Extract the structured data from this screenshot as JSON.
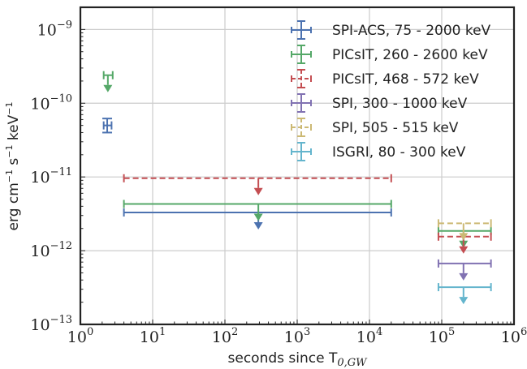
{
  "chart_data": {
    "type": "scatter",
    "xscale": "log",
    "yscale": "log",
    "xlim": [
      1,
      1000000
    ],
    "ylim": [
      1e-13,
      2e-09
    ],
    "xlabel": "seconds since T0,GW",
    "xlabel_main": "seconds since T",
    "xlabel_sub": "0,GW",
    "ylabel": "erg cm-1 s-1 keV-1",
    "ylabel_parts": {
      "a": "erg cm",
      "a_sup": "−1",
      "b": " s",
      "b_sup": "−1",
      "c": " keV",
      "c_sup": "−1"
    },
    "grid": true,
    "legend_position": "top-right",
    "x_ticks": [
      {
        "value": 1,
        "label": "10",
        "exp": "0"
      },
      {
        "value": 10,
        "label": "10",
        "exp": "1"
      },
      {
        "value": 100,
        "label": "10",
        "exp": "2"
      },
      {
        "value": 1000,
        "label": "10",
        "exp": "3"
      },
      {
        "value": 10000,
        "label": "10",
        "exp": "4"
      },
      {
        "value": 100000,
        "label": "10",
        "exp": "5"
      },
      {
        "value": 1000000,
        "label": "10",
        "exp": "6"
      }
    ],
    "y_ticks": [
      {
        "value": 1e-13,
        "label": "10",
        "exp": "−13"
      },
      {
        "value": 1e-12,
        "label": "10",
        "exp": "−12"
      },
      {
        "value": 1e-11,
        "label": "10",
        "exp": "−11"
      },
      {
        "value": 1e-10,
        "label": "10",
        "exp": "−10"
      },
      {
        "value": 1e-09,
        "label": "10",
        "exp": "−9"
      }
    ],
    "series": [
      {
        "name": "SPI-ACS, 75 - 2000 keV",
        "color": "#4c72b0",
        "dashed": false,
        "points": [
          {
            "x": 2.35,
            "y": 5e-11,
            "xlo": 2.1,
            "xhi": 2.7,
            "ylo": 4e-11,
            "yhi": 6.2e-11,
            "upper_limit": false
          },
          {
            "x": 290,
            "y": 3.3e-12,
            "xlo": 4,
            "xhi": 20000,
            "upper_limit": true
          }
        ]
      },
      {
        "name": "PICsIT, 260 - 2600 keV",
        "color": "#55a868",
        "dashed": false,
        "points": [
          {
            "x": 2.4,
            "y": 2.4e-10,
            "xlo": 2.1,
            "xhi": 2.8,
            "upper_limit": true
          },
          {
            "x": 290,
            "y": 4.3e-12,
            "xlo": 4,
            "xhi": 20000,
            "upper_limit": true
          },
          {
            "x": 200000,
            "y": 1.85e-12,
            "xlo": 90000,
            "xhi": 480000,
            "upper_limit": true
          }
        ]
      },
      {
        "name": "PICsIT, 468 - 572 keV",
        "color": "#c44e52",
        "dashed": true,
        "points": [
          {
            "x": 290,
            "y": 9.6e-12,
            "xlo": 4,
            "xhi": 20000,
            "upper_limit": true
          },
          {
            "x": 200000,
            "y": 1.55e-12,
            "xlo": 90000,
            "xhi": 480000,
            "upper_limit": true
          }
        ]
      },
      {
        "name": "SPI, 300 - 1000 keV",
        "color": "#8172b2",
        "dashed": false,
        "points": [
          {
            "x": 200000,
            "y": 6.7e-13,
            "xlo": 90000,
            "xhi": 480000,
            "upper_limit": true
          }
        ]
      },
      {
        "name": "SPI, 505 - 515 keV",
        "color": "#ccb974",
        "dashed": true,
        "points": [
          {
            "x": 200000,
            "y": 2.35e-12,
            "xlo": 90000,
            "xhi": 480000,
            "upper_limit": true
          }
        ]
      },
      {
        "name": "ISGRI, 80 - 300 keV",
        "color": "#64b5cd",
        "dashed": false,
        "points": [
          {
            "x": 200000,
            "y": 3.2e-13,
            "xlo": 90000,
            "xhi": 480000,
            "upper_limit": true
          }
        ]
      }
    ]
  }
}
